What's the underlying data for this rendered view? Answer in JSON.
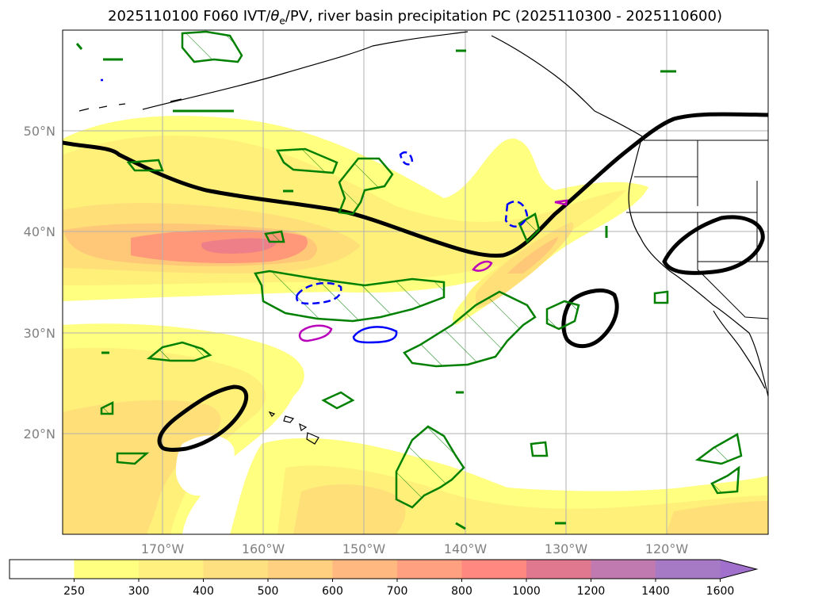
{
  "title": {
    "prefix": "2025110100 F060 IVT/",
    "theta": "θ",
    "theta_sub": "e",
    "suffix": "/PV, river basin precipitation PC (2025110300 - 2025110600)"
  },
  "map": {
    "projection": "PlateCarree",
    "lon_range": [
      -180,
      -110
    ],
    "lat_range": [
      10,
      60
    ],
    "lat_labels": [
      "50°N",
      "40°N",
      "30°N",
      "20°N"
    ],
    "lon_labels": [
      "170°W",
      "160°W",
      "150°W",
      "140°W",
      "130°W",
      "120°W"
    ],
    "legend_notes": {
      "fill": "IVT magnitude shaded",
      "black": "dynamic tropopause / PV contour",
      "green_hatched": "precipitation PC regions",
      "blue_dashed": "negative theta-e anomaly",
      "magenta": "positive theta-e anomaly"
    }
  },
  "colorbar": {
    "ticks": [
      "250",
      "300",
      "400",
      "500",
      "600",
      "700",
      "800",
      "1000",
      "1200",
      "1400",
      "1600"
    ],
    "colors": [
      "#ffffff",
      "#ffff80",
      "#fff080",
      "#ffe080",
      "#ffd080",
      "#ffb880",
      "#ffa080",
      "#ff8880",
      "#e07890",
      "#c07ab0",
      "#a77ac6",
      "#a070cc"
    ],
    "extend": "max"
  },
  "colors": {
    "ivt_1": "#ffff80",
    "ivt_2": "#fff07a",
    "ivt_3": "#ffe078",
    "ivt_4": "#ffc878",
    "ivt_5": "#ff9878",
    "ivt_6": "#ee7f88",
    "pv": "#000000",
    "precip": "#008000",
    "theta_neg": "#0000ff",
    "theta_pos": "#bb00bb"
  }
}
